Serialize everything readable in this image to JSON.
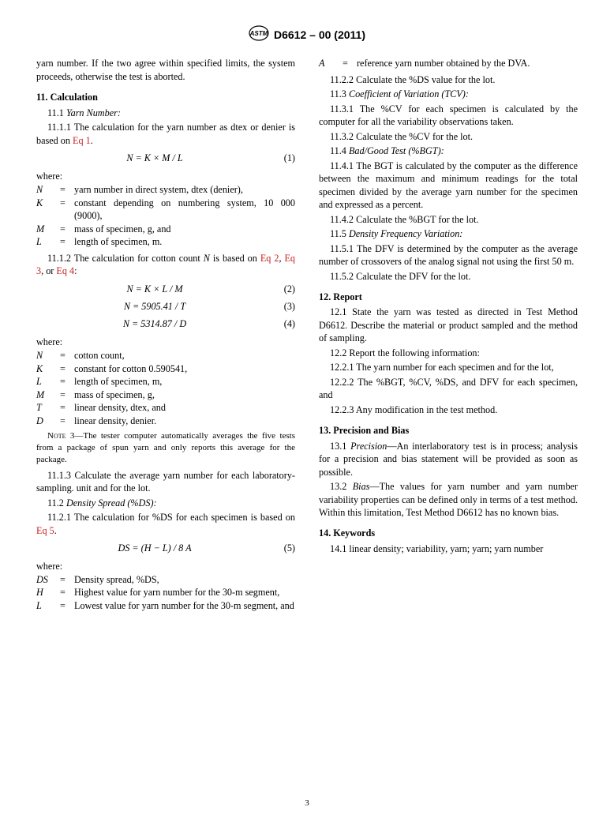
{
  "header": {
    "code": "D6612 – 00 (2011)"
  },
  "col1": {
    "intro": "yarn number. If the two agree within specified limits, the system proceeds, otherwise the test is aborted.",
    "s11": "11.  Calculation",
    "s11_1": "11.1 ",
    "s11_1_title": "Yarn Number:",
    "s11_1_1a": "11.1.1 The calculation for the yarn number as dtex or denier is based on ",
    "s11_1_1_link": "Eq 1",
    "s11_1_1b": ".",
    "eq1": "N = K × M / L",
    "eq1n": "(1)",
    "where1": "where:",
    "def1": [
      {
        "s": "N",
        "d": "yarn number in direct system, dtex (denier),"
      },
      {
        "s": "K",
        "d": "constant depending on numbering system, 10 000 (9000),"
      },
      {
        "s": "M",
        "d": "mass of specimen, g, and"
      },
      {
        "s": "L",
        "d": "length of specimen, m."
      }
    ],
    "s11_1_2a": "11.1.2 The calculation for cotton count ",
    "s11_1_2N": "N",
    "s11_1_2b": " is based on ",
    "s11_1_2_l2": "Eq 2",
    "s11_1_2_l3": "Eq 3",
    "s11_1_2_l4": "Eq 4",
    "s11_1_2c": ":",
    "eq2": "N = K × L / M",
    "eq2n": "(2)",
    "eq3": "N = 5905.41 / T",
    "eq3n": "(3)",
    "eq4": "N = 5314.87 / D",
    "eq4n": "(4)",
    "where2": "where:",
    "def2": [
      {
        "s": "N",
        "d": "cotton count,"
      },
      {
        "s": "K",
        "d": "constant for cotton 0.590541,"
      },
      {
        "s": "L",
        "d": "length of specimen, m,"
      },
      {
        "s": "M",
        "d": "mass of specimen, g,"
      },
      {
        "s": "T",
        "d": "linear density, dtex, and"
      },
      {
        "s": "D",
        "d": "linear density, denier."
      }
    ],
    "note3_label": "Note 3—",
    "note3": "The tester computer automatically averages the five tests from a package of spun yarn and only reports this average for the package.",
    "s11_1_3": "11.1.3 Calculate the average yarn number for each laboratory-sampling. unit and for the lot.",
    "s11_2": "11.2 ",
    "s11_2_title": "Density Spread (%DS):",
    "s11_2_1a": "11.2.1 The calculation for %DS for each specimen is based on ",
    "s11_2_1_link": "Eq 5",
    "s11_2_1b": ".",
    "eq5": "DS = (H − L) / 8 A",
    "eq5n": "(5)",
    "where3": "where:",
    "def3": [
      {
        "s": "DS",
        "d": "Density spread, %DS,"
      },
      {
        "s": "H",
        "d": "Highest value for yarn number for the 30-m segment,"
      },
      {
        "s": "L",
        "d": "Lowest value for yarn number for the 30-m segment, and"
      }
    ]
  },
  "col2": {
    "defA": [
      {
        "s": "A",
        "d": "reference yarn number obtained by the DVA."
      }
    ],
    "s11_2_2": "11.2.2 Calculate the %DS value for the lot.",
    "s11_3": "11.3 ",
    "s11_3_title": "Coefficient of Variation (TCV):",
    "s11_3_1": "11.3.1 The %CV for each specimen is calculated by the computer for all the variability observations taken.",
    "s11_3_2": "11.3.2 Calculate the %CV for the lot.",
    "s11_4": "11.4 ",
    "s11_4_title": "Bad/Good Test (%BGT):",
    "s11_4_1": "11.4.1 The BGT is calculated by the computer as the difference between the maximum and minimum readings for the total specimen divided by the average yarn number for the specimen and expressed as a percent.",
    "s11_4_2": "11.4.2 Calculate the %BGT for the lot.",
    "s11_5": "11.5 ",
    "s11_5_title": "Density Frequency Variation:",
    "s11_5_1": "11.5.1 The DFV is determined by the computer as the average number of crossovers of the analog signal not using the first 50 m.",
    "s11_5_2": "11.5.2 Calculate the DFV for the lot.",
    "s12": "12.  Report",
    "s12_1": "12.1 State the yarn was tested as directed in Test Method D6612. Describe the material or product sampled and the method of sampling.",
    "s12_2": "12.2 Report the following information:",
    "s12_2_1": "12.2.1 The yarn number for each specimen and for the lot,",
    "s12_2_2": "12.2.2 The %BGT, %CV, %DS, and DFV for each specimen, and",
    "s12_2_3": "12.2.3 Any modification in the test method.",
    "s13": "13.  Precision and Bias",
    "s13_1_lbl": "Precision",
    "s13_1": "13.1 ",
    "s13_1_body": "—An interlaboratory test is in process; analysis for a precision and bias statement will be provided as soon as possible.",
    "s13_2_lbl": "Bias",
    "s13_2": "13.2 ",
    "s13_2_body": "—The values for yarn number and yarn number variability properties can be defined only in terms of a test method. Within this limitation, Test Method D6612 has no known bias.",
    "s14": "14.  Keywords",
    "s14_1": "14.1 linear density; variability, yarn; yarn; yarn number"
  },
  "page_num": "3"
}
